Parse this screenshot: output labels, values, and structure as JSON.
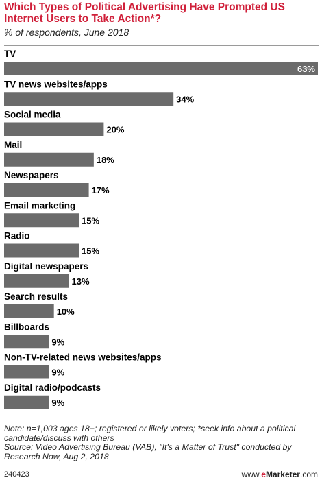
{
  "header": {
    "title": "Which Types of Political Advertising Have Prompted US Internet Users to Take Action*?",
    "subtitle": "% of respondents, June 2018"
  },
  "chart_data": {
    "type": "bar",
    "orientation": "horizontal",
    "categories": [
      "TV",
      "TV news websites/apps",
      "Social media",
      "Mail",
      "Newspapers",
      "Email marketing",
      "Radio",
      "Digital newspapers",
      "Search results",
      "Billboards",
      "Non-TV-related news websites/apps",
      "Digital radio/podcasts"
    ],
    "values": [
      63,
      34,
      20,
      18,
      17,
      15,
      15,
      13,
      10,
      9,
      9,
      9
    ],
    "value_labels": [
      "63%",
      "34%",
      "20%",
      "18%",
      "17%",
      "15%",
      "15%",
      "13%",
      "10%",
      "9%",
      "9%",
      "9%"
    ],
    "unit": "%",
    "xlim": [
      0,
      63
    ],
    "grid": false,
    "legend": "none",
    "bar_color": "#6b6b6b"
  },
  "footer": {
    "note": "Note: n=1,003 ages 18+; registered or likely voters; *seek info about a political candidate/discuss with others",
    "source": "Source: Video Advertising Bureau (VAB), \"It's a Matter of Trust\" conducted by Research Now, Aug 2, 2018",
    "chart_id": "240423",
    "brand_prefix": "www.",
    "brand_e": "e",
    "brand_name": "Marketer",
    "brand_suffix": ".com"
  }
}
